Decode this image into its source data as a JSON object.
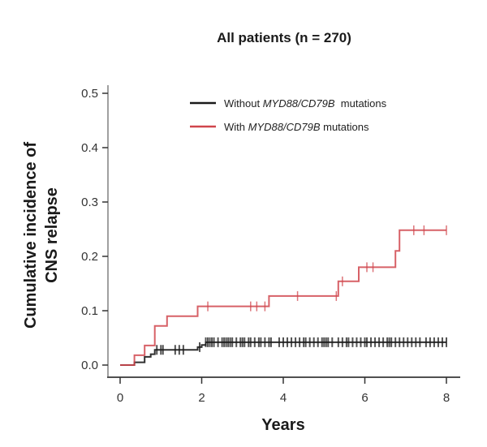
{
  "chart_data": {
    "type": "line",
    "subtype": "cumulative-incidence-step",
    "title": "All patients (n = 270)",
    "xlabel": "Years",
    "ylabel_lines": [
      "Cumulative incidence of",
      "CNS relapse"
    ],
    "xlim": [
      0,
      8
    ],
    "ylim": [
      0,
      0.5
    ],
    "xticks": [
      0,
      2,
      4,
      6,
      8
    ],
    "xtick_labels": [
      "0",
      "2",
      "4",
      "6",
      "8"
    ],
    "yticks": [
      0,
      0.1,
      0.2,
      0.3,
      0.4,
      0.5
    ],
    "ytick_labels": [
      "0.0",
      "0.1",
      "0.2",
      "0.3",
      "0.4",
      "0.5"
    ],
    "grid": false,
    "legend_position": "top-right",
    "series": [
      {
        "name": "Without MYD88/CD79B mutations",
        "legend_parts": [
          {
            "text": "Without ",
            "italic": false
          },
          {
            "text": "MYD88/CD79B",
            "italic": true
          },
          {
            "text": "  mutations",
            "italic": false
          }
        ],
        "color": "#1a1a1a",
        "steps": [
          [
            0,
            0
          ],
          [
            0.35,
            0
          ],
          [
            0.35,
            0.005
          ],
          [
            0.6,
            0.005
          ],
          [
            0.6,
            0.015
          ],
          [
            0.75,
            0.015
          ],
          [
            0.75,
            0.02
          ],
          [
            0.85,
            0.02
          ],
          [
            0.85,
            0.028
          ],
          [
            1.9,
            0.028
          ],
          [
            1.9,
            0.033
          ],
          [
            2.0,
            0.033
          ],
          [
            2.0,
            0.037
          ],
          [
            2.1,
            0.037
          ],
          [
            2.1,
            0.042
          ],
          [
            8.0,
            0.042
          ]
        ],
        "censor_times": [
          0.9,
          1.0,
          1.05,
          1.35,
          1.45,
          1.55,
          1.95,
          2.1,
          2.15,
          2.2,
          2.25,
          2.3,
          2.4,
          2.5,
          2.55,
          2.6,
          2.65,
          2.7,
          2.75,
          2.85,
          2.95,
          3.0,
          3.05,
          3.15,
          3.2,
          3.3,
          3.4,
          3.45,
          3.55,
          3.65,
          3.7,
          3.9,
          4.0,
          4.1,
          4.2,
          4.3,
          4.4,
          4.5,
          4.55,
          4.65,
          4.75,
          4.85,
          4.95,
          5.0,
          5.05,
          5.1,
          5.2,
          5.35,
          5.45,
          5.55,
          5.6,
          5.7,
          5.8,
          5.9,
          6.0,
          6.05,
          6.15,
          6.25,
          6.35,
          6.45,
          6.55,
          6.6,
          6.65,
          6.75,
          6.85,
          6.95,
          7.05,
          7.15,
          7.25,
          7.35,
          7.5,
          7.6,
          7.7,
          7.8,
          7.9,
          8.0
        ]
      },
      {
        "name": "With MYD88/CD79B mutations",
        "legend_parts": [
          {
            "text": "With ",
            "italic": false
          },
          {
            "text": "MYD88/CD79B",
            "italic": true
          },
          {
            "text": " mutations",
            "italic": false
          }
        ],
        "color": "#d0454c",
        "steps": [
          [
            0,
            0
          ],
          [
            0.35,
            0
          ],
          [
            0.35,
            0.018
          ],
          [
            0.6,
            0.018
          ],
          [
            0.6,
            0.036
          ],
          [
            0.85,
            0.036
          ],
          [
            0.85,
            0.072
          ],
          [
            1.15,
            0.072
          ],
          [
            1.15,
            0.09
          ],
          [
            1.9,
            0.09
          ],
          [
            1.9,
            0.108
          ],
          [
            3.65,
            0.108
          ],
          [
            3.65,
            0.127
          ],
          [
            5.35,
            0.127
          ],
          [
            5.35,
            0.154
          ],
          [
            5.85,
            0.154
          ],
          [
            5.85,
            0.18
          ],
          [
            6.75,
            0.18
          ],
          [
            6.75,
            0.21
          ],
          [
            6.85,
            0.21
          ],
          [
            6.85,
            0.248
          ],
          [
            8.0,
            0.248
          ]
        ],
        "censor_times": [
          2.15,
          3.2,
          3.35,
          3.55,
          4.35,
          5.3,
          5.45,
          6.05,
          6.2,
          7.2,
          7.45,
          8.0
        ]
      }
    ]
  }
}
